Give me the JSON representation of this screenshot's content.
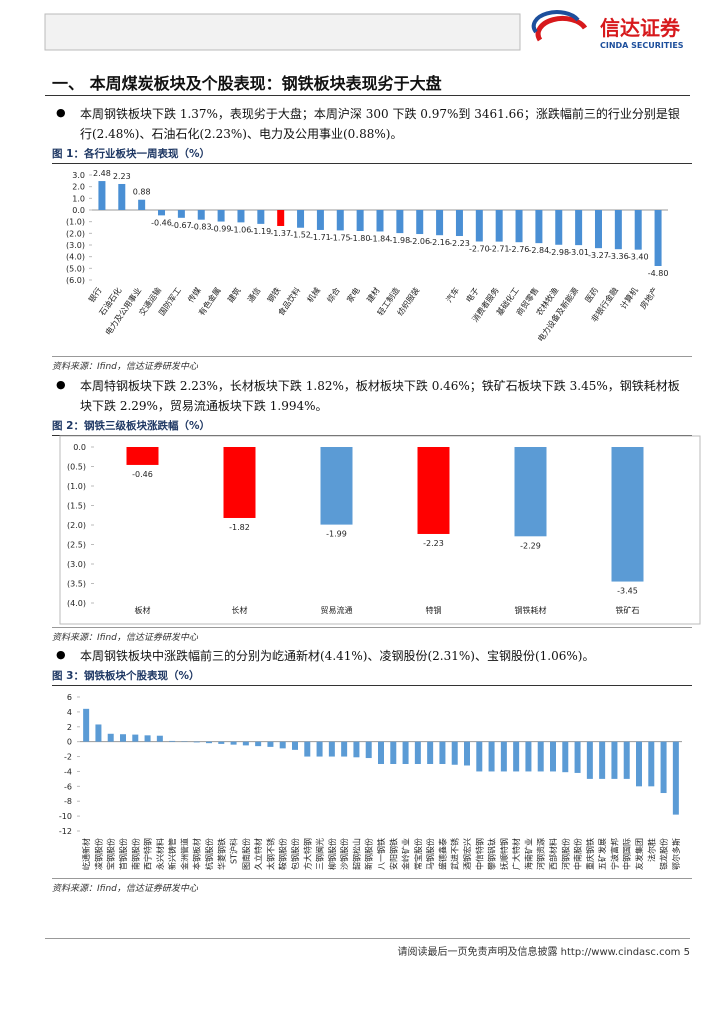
{
  "header": {
    "logo_cn": "信达证券",
    "logo_en": "CINDA SECURITIES"
  },
  "section_title": "一、  本周煤炭板块及个股表现：钢铁板块表现劣于大盘",
  "bullets": [
    "本周钢铁板块下跌 1.37%，表现劣于大盘；本周沪深 300 下跌 0.97%到 3461.66；涨跌幅前三的行业分别是银行(2.48%)、石油石化(2.23%)、电力及公用事业(0.88%)。",
    "本周特钢板块下跌 2.23%，长材板块下跌 1.82%，板材板块下跌 0.46%；铁矿石板块下跌 3.45%，钢铁耗材板块下跌 2.29%，贸易流通板块下跌 1.994%。",
    "本周钢铁板块中涨跌幅前三的分别为屹通新材(4.41%)、凌钢股份(2.31%)、宝钢股份(1.06%)。"
  ],
  "chart_data": [
    {
      "type": "bar",
      "title": "图 1：各行业板块一周表现（%）",
      "source": "资料来源：Ifind，信达证券研发中心",
      "categories": [
        "银行",
        "石油石化",
        "电力及公用事业",
        "交通运输",
        "国防军工",
        "传媒",
        "有色金属",
        "建筑",
        "通信",
        "钢铁",
        "食品饮料",
        "机械",
        "综合",
        "家电",
        "建材",
        "轻工制造",
        "纺织服装",
        null,
        "汽车",
        "电子",
        "消费者服务",
        "基础化工",
        "商贸零售",
        "农林牧渔",
        "电力设备及新能源",
        "医药",
        "非银行金融",
        "计算机",
        "房地产"
      ],
      "values": [
        2.48,
        2.23,
        0.88,
        -0.46,
        -0.67,
        -0.83,
        -0.99,
        -1.06,
        -1.19,
        -1.37,
        -1.52,
        -1.71,
        -1.75,
        -1.8,
        -1.84,
        -1.98,
        -2.06,
        -2.16,
        -2.23,
        -2.7,
        -2.71,
        -2.76,
        -2.84,
        -2.98,
        -3.01,
        -3.27,
        -3.36,
        -3.4,
        -4.8
      ],
      "value_labels": [
        "2.48",
        "2.23",
        "0.88",
        "-0.46",
        "-0.67",
        "-0.83",
        "-0.99",
        "-1.06",
        "-1.19",
        "-1.37",
        "-1.52",
        "-1.71",
        "-1.75",
        "-1.80",
        "-1.84",
        "-1.98",
        "-2.06",
        "-2.16",
        "-2.23",
        "-2.70",
        "-2.71",
        "-2.76",
        "-2.84",
        "-2.98",
        "-3.01",
        "-3.27",
        "-3.36",
        "-3.40",
        "-4.80"
      ],
      "colors": [
        "#4a8fd4",
        "#4a8fd4",
        "#4a8fd4",
        "#4a8fd4",
        "#4a8fd4",
        "#4a8fd4",
        "#4a8fd4",
        "#4a8fd4",
        "#4a8fd4",
        "#ff0000",
        "#4a8fd4",
        "#4a8fd4",
        "#4a8fd4",
        "#4a8fd4",
        "#4a8fd4",
        "#4a8fd4",
        "#4a8fd4",
        "#4a8fd4",
        "#4a8fd4",
        "#4a8fd4",
        "#4a8fd4",
        "#4a8fd4",
        "#4a8fd4",
        "#4a8fd4",
        "#4a8fd4",
        "#4a8fd4",
        "#4a8fd4",
        "#4a8fd4",
        "#4a8fd4"
      ],
      "ylim": [
        -6,
        3
      ],
      "yticks": [
        {
          "value": 3,
          "label": "3.0"
        },
        {
          "value": 2,
          "label": "2.0"
        },
        {
          "value": 1,
          "label": "1.0"
        },
        {
          "value": 0,
          "label": "0.0"
        },
        {
          "value": -1,
          "label": "(1.0)"
        },
        {
          "value": -2,
          "label": "(2.0)"
        },
        {
          "value": -3,
          "label": "(3.0)"
        },
        {
          "value": -4,
          "label": "(4.0)"
        },
        {
          "value": -5,
          "label": "(5.0)"
        },
        {
          "value": -6,
          "label": "(6.0)"
        }
      ]
    },
    {
      "type": "bar",
      "title": "图 2：钢铁三级板块涨跌幅（%）",
      "source": "资料来源：Ifind，信达证券研发中心",
      "categories": [
        "板材",
        "长材",
        "贸易流通",
        "特钢",
        "钢铁耗材",
        "铁矿石"
      ],
      "values": [
        -0.46,
        -1.82,
        -1.99,
        -2.23,
        -2.29,
        -3.45
      ],
      "colors": [
        "#ff0000",
        "#ff0000",
        "#5b9bd5",
        "#ff0000",
        "#5b9bd5",
        "#5b9bd5"
      ],
      "ylim": [
        -4,
        0
      ],
      "yticks": [
        {
          "value": 0,
          "label": "0.0"
        },
        {
          "value": -0.5,
          "label": "(0.5)"
        },
        {
          "value": -1,
          "label": "(1.0)"
        },
        {
          "value": -1.5,
          "label": "(1.5)"
        },
        {
          "value": -2,
          "label": "(2.0)"
        },
        {
          "value": -2.5,
          "label": "(2.5)"
        },
        {
          "value": -3,
          "label": "(3.0)"
        },
        {
          "value": -3.5,
          "label": "(3.5)"
        },
        {
          "value": -4,
          "label": "(4.0)"
        }
      ]
    },
    {
      "type": "bar",
      "title": "图 3：钢铁板块个股表现（%）",
      "source": "资料来源：Ifind，信达证券研发中心",
      "categories": [
        "屹通新材",
        "凌钢股份",
        "宝钢股份",
        "首钢股份",
        "南钢股份",
        "西宁特钢",
        "永兴材料",
        "新兴铸管",
        "金洲管道",
        "本钢板材",
        "杭钢股份",
        "华菱钢铁",
        "ST沪科",
        "图南股份",
        "久立特材",
        "太钢不锈",
        "鞍钢股份",
        "包钢股份",
        "方大特钢",
        "三钢闽光",
        "柳钢股份",
        "沙钢股份",
        "韶钢松山",
        "新钢股份",
        "八一钢铁",
        "安阳钢铁",
        "金岭矿业",
        "常宝股份",
        "马钢股份",
        "盛德鑫泰",
        "武进不锈",
        "酒钢宏兴",
        "中信特钢",
        "攀钢钒钛",
        "抚顺特钢",
        "广大特材",
        "海南矿业",
        "河钢资源",
        "西部材料",
        "河钢股份",
        "中南股份",
        "重庆钢铁",
        "五矿发展",
        "宁波富邦",
        "中钢国际",
        "友发集团",
        "法尔胜",
        "银龙股份",
        "鄂尔多斯"
      ],
      "values": [
        4.41,
        2.31,
        1.06,
        1.0,
        0.95,
        0.85,
        0.8,
        0.1,
        0.05,
        -0.1,
        -0.2,
        -0.3,
        -0.4,
        -0.5,
        -0.6,
        -0.7,
        -0.9,
        -1.1,
        -2.0,
        -2.0,
        -2.0,
        -2.0,
        -2.1,
        -2.2,
        -3.0,
        -3.0,
        -3.0,
        -3.0,
        -3.0,
        -3.0,
        -3.1,
        -3.2,
        -4.0,
        -4.0,
        -4.0,
        -4.0,
        -4.0,
        -4.0,
        -4.0,
        -4.1,
        -4.2,
        -5.0,
        -5.0,
        -5.0,
        -5.0,
        -6.0,
        -6.0,
        -6.9,
        -9.8
      ],
      "color": "#5b9bd5",
      "ylim": [
        -12,
        6
      ],
      "yticks": [
        6,
        4,
        2,
        0,
        -2,
        -4,
        -6,
        -8,
        -10,
        -12
      ]
    }
  ],
  "footer": {
    "text": "请阅读最后一页免责声明及信息披露 http://www.cindasc.com",
    "page": "5"
  }
}
